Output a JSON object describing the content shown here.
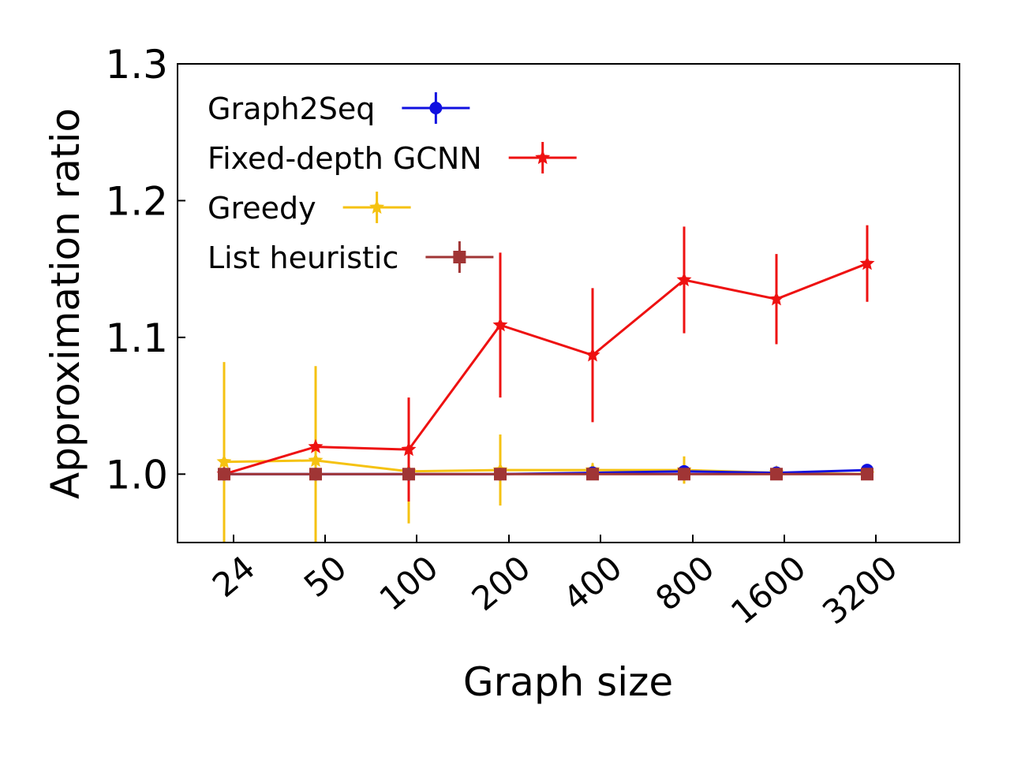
{
  "chart_data": {
    "type": "line",
    "xlabel": "Graph size",
    "ylabel": "Approximation ratio",
    "x_scale": "log",
    "categories": [
      "24",
      "50",
      "100",
      "200",
      "400",
      "800",
      "1600",
      "3200"
    ],
    "ylim": [
      0.95,
      1.3
    ],
    "yticks": [
      "1.0",
      "1.1",
      "1.2",
      "1.3"
    ],
    "ytick_values": [
      1.0,
      1.1,
      1.2,
      1.3
    ],
    "legend_position": "top-left",
    "grid": false,
    "series": [
      {
        "name": "Graph2Seq",
        "color": "#1010e0",
        "marker": "circle",
        "values": [
          1.0,
          1.0,
          1.0,
          1.0,
          1.001,
          1.002,
          1.001,
          1.003
        ],
        "errors": [
          0.0,
          0.0,
          0.0,
          0.0,
          0.0,
          0.0,
          0.0,
          0.0
        ]
      },
      {
        "name": "Fixed-depth GCNN",
        "color": "#ee1111",
        "marker": "star",
        "values": [
          1.0,
          1.02,
          1.018,
          1.109,
          1.087,
          1.142,
          1.128,
          1.154
        ],
        "errors": [
          0.0,
          0.0,
          0.038,
          0.053,
          0.049,
          0.039,
          0.033,
          0.028
        ]
      },
      {
        "name": "Greedy",
        "color": "#f5c211",
        "marker": "star",
        "values": [
          1.009,
          1.01,
          1.002,
          1.003,
          1.003,
          1.003,
          1.001,
          1.0
        ],
        "errors": [
          0.073,
          0.069,
          0.038,
          0.026,
          0.005,
          0.01,
          0.0,
          0.0
        ]
      },
      {
        "name": "List heuristic",
        "color": "#a03535",
        "marker": "square",
        "values": [
          1.0,
          1.0,
          1.0,
          1.0,
          1.0,
          1.0,
          1.0,
          1.0
        ],
        "errors": [
          0.0,
          0.0,
          0.0,
          0.0,
          0.0,
          0.0,
          0.0,
          0.0
        ]
      }
    ]
  }
}
